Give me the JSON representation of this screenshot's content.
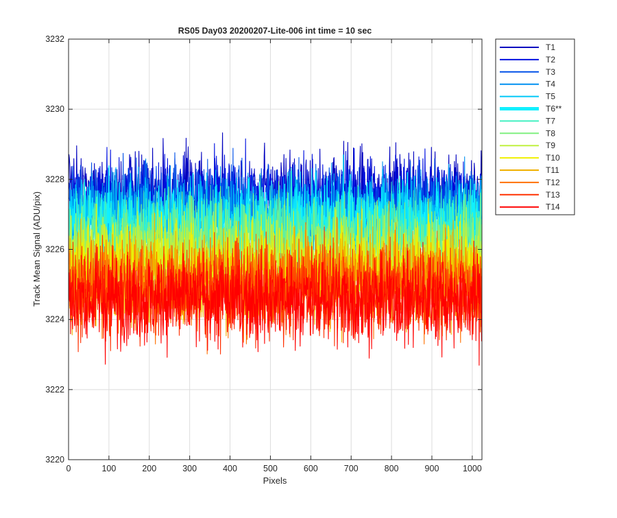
{
  "chart_data": {
    "type": "line",
    "title": "RS05 Day03 20200207-Lite-006 int time = 10 sec",
    "xlabel": "Pixels",
    "ylabel": "Track Mean Signal (ADU/pix)",
    "xlim": [
      0,
      1024
    ],
    "ylim": [
      3220,
      3232
    ],
    "xticks": [
      0,
      100,
      200,
      300,
      400,
      500,
      600,
      700,
      800,
      900,
      1000
    ],
    "yticks": [
      3220,
      3222,
      3224,
      3226,
      3228,
      3230,
      3232
    ],
    "grid": true,
    "legend_position": "outside-right",
    "n_points": 1024,
    "series": [
      {
        "name": "T1",
        "color": "#0000bf",
        "mean": 3227.6,
        "spread": 1.1,
        "highlight": false
      },
      {
        "name": "T2",
        "color": "#0010e0",
        "mean": 3227.4,
        "spread": 1.1,
        "highlight": false
      },
      {
        "name": "T3",
        "color": "#0050e8",
        "mean": 3227.2,
        "spread": 1.1,
        "highlight": false
      },
      {
        "name": "T4",
        "color": "#0090f0",
        "mean": 3227.0,
        "spread": 1.1,
        "highlight": false
      },
      {
        "name": "T5",
        "color": "#00c8f8",
        "mean": 3226.9,
        "spread": 1.1,
        "highlight": false
      },
      {
        "name": "T6**",
        "color": "#10f0ff",
        "mean": 3226.7,
        "spread": 1.1,
        "highlight": true
      },
      {
        "name": "T7",
        "color": "#40f0c0",
        "mean": 3226.4,
        "spread": 1.2,
        "highlight": false
      },
      {
        "name": "T8",
        "color": "#80f080",
        "mean": 3226.1,
        "spread": 1.2,
        "highlight": false
      },
      {
        "name": "T9",
        "color": "#c0f040",
        "mean": 3225.8,
        "spread": 1.2,
        "highlight": false
      },
      {
        "name": "T10",
        "color": "#f0f000",
        "mean": 3225.5,
        "spread": 1.2,
        "highlight": false
      },
      {
        "name": "T11",
        "color": "#f0b000",
        "mean": 3225.2,
        "spread": 1.2,
        "highlight": false
      },
      {
        "name": "T12",
        "color": "#ff7000",
        "mean": 3225.0,
        "spread": 1.2,
        "highlight": false
      },
      {
        "name": "T13",
        "color": "#ff3000",
        "mean": 3224.8,
        "spread": 1.2,
        "highlight": false
      },
      {
        "name": "T14",
        "color": "#ff0000",
        "mean": 3224.6,
        "spread": 1.2,
        "highlight": false
      }
    ]
  }
}
